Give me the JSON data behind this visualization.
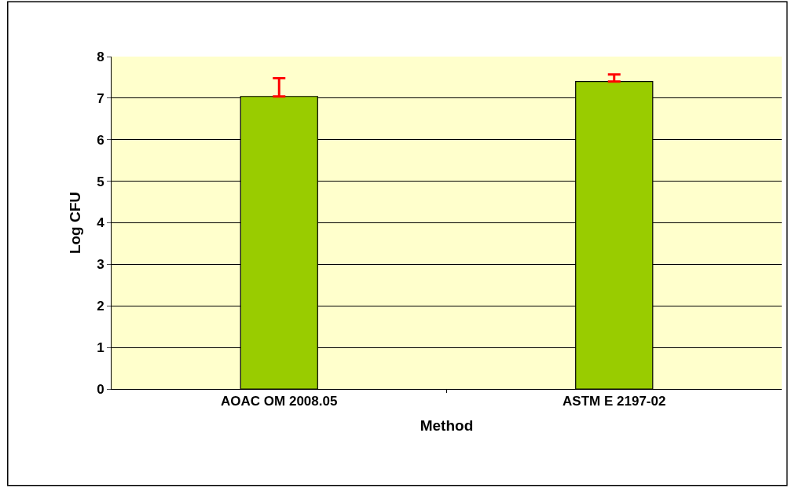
{
  "chart_data": {
    "type": "bar",
    "xlabel": "Method",
    "ylabel": "Log CFU",
    "categories": [
      "AOAC OM 2008.05",
      "ASTM E 2197-02"
    ],
    "series": [
      {
        "color": "#99cc00",
        "values": [
          7.04,
          7.4
        ],
        "errors": [
          [
            7.04,
            7.48
          ],
          [
            7.4,
            7.57
          ]
        ]
      }
    ],
    "ylim": [
      0,
      8
    ],
    "yticks": [
      0,
      1,
      2,
      3,
      4,
      5,
      6,
      7,
      8
    ],
    "grid": "y"
  }
}
